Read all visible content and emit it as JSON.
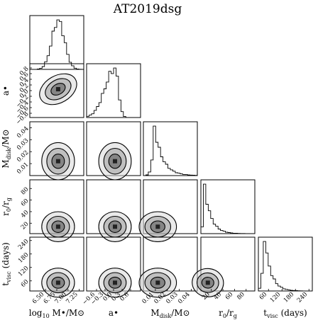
{
  "chart_data": {
    "type": "corner",
    "title": "AT2019dsg",
    "parameters": [
      {
        "key": "logM",
        "label_main": "log",
        "label_sub": "10",
        "label_rest": " M•/M⊙",
        "y_label": "",
        "range": [
          6.15,
          7.35
        ],
        "ticks": [
          6.5,
          6.75,
          7.0,
          7.25
        ],
        "tick_labels": [
          "6.50",
          "6.75",
          "7.00",
          "7.25"
        ],
        "hist_mean": 6.78,
        "hist_sd": 0.14,
        "hist_skew": 0
      },
      {
        "key": "a",
        "label_main": "a•",
        "label_sub": "",
        "label_rest": "",
        "y_label": "a•",
        "range": [
          -0.95,
          0.95
        ],
        "ticks": [
          -0.8,
          -0.6,
          -0.4,
          -0.2,
          0.0,
          0.2,
          0.4,
          0.6,
          0.8
        ],
        "tick_labels": [
          "−0.8",
          "−0.6",
          "−0.4",
          "−0.2",
          "0.0",
          "0.2",
          "0.4",
          "0.6",
          "0.8"
        ],
        "x_tick_labels": [
          "−0.6",
          "−0.3",
          "0.0",
          "0.3",
          "0.6"
        ],
        "x_ticks": [
          -0.6,
          -0.3,
          0.0,
          0.3,
          0.6
        ],
        "hist_mean": 0.05,
        "hist_sd": 0.22,
        "hist_skew": -1
      },
      {
        "key": "Mdisk",
        "label_main": "M",
        "label_sub": "disk",
        "label_rest": "/M⊙",
        "y_label": "Mdisk/M⊙",
        "range": [
          0.0,
          0.045
        ],
        "ticks": [
          0.01,
          0.02,
          0.03,
          0.04
        ],
        "tick_labels": [
          "0.01",
          "0.02",
          "0.03",
          "0.04"
        ],
        "hist_mean": 0.012,
        "hist_sd": 0.006,
        "hist_skew": 1
      },
      {
        "key": "r0",
        "label_main": "r",
        "label_sub": "0",
        "label_rest": "/r",
        "label_sub2": "g",
        "y_label": "r0/rg",
        "range": [
          2,
          95
        ],
        "ticks": [
          20,
          40,
          60,
          80
        ],
        "tick_labels": [
          "20",
          "40",
          "60",
          "80"
        ],
        "hist_mean": 14,
        "hist_sd": 10,
        "hist_skew": 1
      },
      {
        "key": "tvisc",
        "label_main": "t",
        "label_sub": "visc",
        "label_rest": " (days)",
        "y_label": "tvisc (days)",
        "range": [
          15,
          255
        ],
        "ticks": [
          60,
          120,
          180,
          240
        ],
        "tick_labels": [
          "60",
          "120",
          "180",
          "240"
        ],
        "hist_mean": 52,
        "hist_sd": 25,
        "hist_skew": 1
      }
    ],
    "correlations": [
      [
        1,
        0.55,
        0,
        0,
        0
      ],
      [
        0.55,
        1,
        0,
        0,
        0
      ],
      [
        0,
        0,
        1,
        0,
        0
      ],
      [
        0,
        0,
        0,
        1,
        -0.1
      ],
      [
        0,
        0,
        0,
        -0.1,
        1
      ]
    ],
    "contour_levels": [
      0.39,
      0.86,
      0.99
    ],
    "grid": false,
    "legend": "none"
  }
}
